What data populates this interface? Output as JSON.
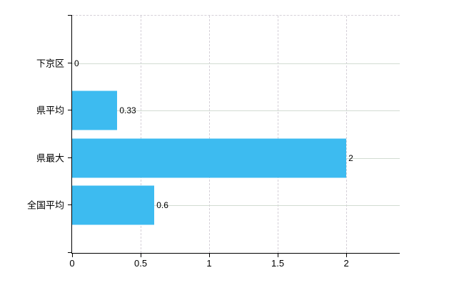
{
  "chart_data": {
    "type": "bar",
    "orientation": "horizontal",
    "categories": [
      "下京区",
      "県平均",
      "県最大",
      "全国平均"
    ],
    "values": [
      0,
      0.33,
      2,
      0.6
    ],
    "value_labels": [
      "0",
      "0.33",
      "2",
      "0.6"
    ],
    "xticks": [
      0,
      0.5,
      1,
      1.5,
      2
    ],
    "xtick_labels": [
      "0",
      "0.5",
      "1",
      "1.5",
      "2"
    ],
    "xlim": [
      0,
      2.39
    ],
    "grid": true,
    "legend_position": "none",
    "bar_color": "#3dbbf0",
    "axis_color": "#000000",
    "gridline_color": "#d2dcd2"
  }
}
